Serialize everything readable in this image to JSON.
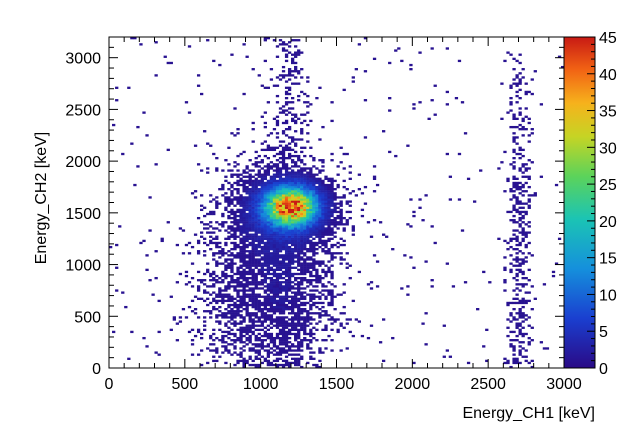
{
  "chart_data": {
    "type": "heatmap",
    "title": "",
    "xlabel": "Energy_CH1 [keV]",
    "ylabel": "Energy_CH2 [keV]",
    "xlim": [
      0,
      3000
    ],
    "ylim": [
      0,
      3200
    ],
    "x_ticks": [
      0,
      500,
      1000,
      1500,
      2000,
      2500,
      3000
    ],
    "x_tick_labels": [
      "0",
      "500",
      "1000",
      "1500",
      "2000",
      "2500",
      "3000"
    ],
    "y_ticks": [
      0,
      500,
      1000,
      1500,
      2000,
      2500,
      3000
    ],
    "y_tick_labels": [
      "0",
      "500",
      "1000",
      "1500",
      "2000",
      "2500",
      "3000"
    ],
    "z_range": [
      0,
      45
    ],
    "z_ticks": [
      0,
      5,
      10,
      15,
      20,
      25,
      30,
      35,
      40,
      45
    ],
    "z_tick_labels": [
      "0",
      "5",
      "10",
      "15",
      "20",
      "25",
      "30",
      "35",
      "40",
      "45"
    ],
    "colormap": "rainbow (ROOT palette 55)",
    "bin_width_keV": 20,
    "features": [
      {
        "x": 1200,
        "y": 1560,
        "peak_count": 42
      },
      {
        "x": 1200,
        "y": 1000,
        "extent": "vertical band from 0 to 3200 keV"
      },
      {
        "x": 2700,
        "y": 900,
        "extent": "vertical band from 0 to 2900 keV"
      }
    ],
    "grid": false,
    "legend": "color bar on right"
  }
}
